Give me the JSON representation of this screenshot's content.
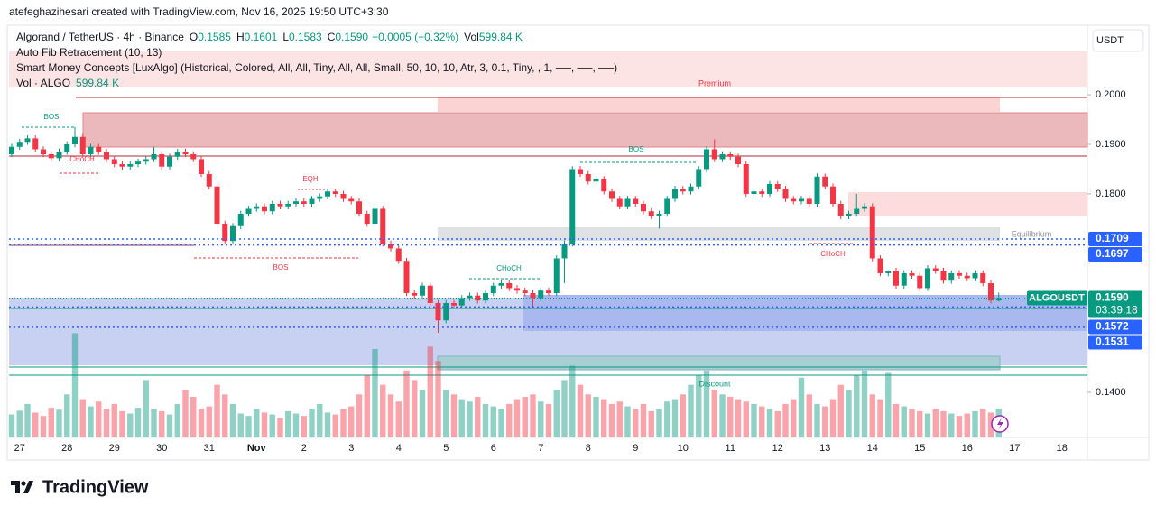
{
  "header": {
    "author_line": "atefeghazihesari created with TradingView.com, Nov 16, 2025 19:50 UTC+3:30"
  },
  "chart_data": {
    "type": "candlestick",
    "legend": {
      "symbol": "Algorand / TetherUS · 4h · Binance",
      "ohlc": [
        {
          "key": "O",
          "value": "0.1585"
        },
        {
          "key": "H",
          "value": "0.1601"
        },
        {
          "key": "L",
          "value": "0.1583"
        },
        {
          "key": "C",
          "value": "0.1590"
        }
      ],
      "change": "+0.0005 (+0.32%)",
      "volume_key": "Vol",
      "volume_value": "599.84 K",
      "indicators": [
        "Auto Fib Retracement (10, 13)",
        "Smart Money Concepts [LuxAlgo] (Historical, Colored, All, All, Tiny, All, All, Small, 50, 10, 10, Atr, 3, 0.1, Tiny, , 1, ──, ──, ──)"
      ],
      "volume_indicator": "Vol · ALGO",
      "volume_indicator_value": "599.84 K"
    },
    "currency": "USDT",
    "up_color": "#089981",
    "down_color": "#f23645",
    "open": [
      0.188,
      0.1895,
      0.1905,
      0.1912,
      0.189,
      0.188,
      0.1872,
      0.1885,
      0.19,
      0.1915,
      0.188,
      0.1895,
      0.1885,
      0.187,
      0.186,
      0.1855,
      0.186,
      0.1865,
      0.187,
      0.188,
      0.1855,
      0.1875,
      0.1885,
      0.188,
      0.187,
      0.184,
      0.1815,
      0.174,
      0.1705,
      0.1735,
      0.176,
      0.177,
      0.1775,
      0.1765,
      0.178,
      0.1775,
      0.178,
      0.1785,
      0.178,
      0.179,
      0.1795,
      0.1805,
      0.18,
      0.179,
      0.1785,
      0.176,
      0.174,
      0.177,
      0.17,
      0.169,
      0.1665,
      0.16,
      0.1595,
      0.1615,
      0.158,
      0.1545,
      0.158,
      0.1575,
      0.159,
      0.1595,
      0.1585,
      0.16,
      0.1615,
      0.162,
      0.161,
      0.1605,
      0.16,
      0.159,
      0.1605,
      0.16,
      0.167,
      0.17,
      0.185,
      0.184,
      0.1825,
      0.183,
      0.1805,
      0.179,
      0.1775,
      0.179,
      0.178,
      0.1765,
      0.1755,
      0.176,
      0.179,
      0.181,
      0.1805,
      0.1815,
      0.185,
      0.189,
      0.187,
      0.188,
      0.1875,
      0.186,
      0.18,
      0.1805,
      0.18,
      0.182,
      0.181,
      0.179,
      0.1785,
      0.179,
      0.178,
      0.1835,
      0.1815,
      0.178,
      0.1755,
      0.176,
      0.177,
      0.1775,
      0.167,
      0.164,
      0.1645,
      0.1615,
      0.164,
      0.1635,
      0.161,
      0.165,
      0.1645,
      0.1625,
      0.164,
      0.1635,
      0.163,
      0.164,
      0.162,
      0.1585
    ],
    "high": [
      0.1901,
      0.1911,
      0.1918,
      0.1918,
      0.1896,
      0.1886,
      0.1891,
      0.1906,
      0.1935,
      0.1921,
      0.1901,
      0.1901,
      0.1891,
      0.1876,
      0.1866,
      0.1866,
      0.1871,
      0.1876,
      0.1895,
      0.1886,
      0.1881,
      0.1891,
      0.1891,
      0.1886,
      0.1876,
      0.1846,
      0.1821,
      0.1746,
      0.1741,
      0.1766,
      0.1776,
      0.1781,
      0.1781,
      0.1786,
      0.1786,
      0.1786,
      0.1791,
      0.1791,
      0.1796,
      0.1801,
      0.1811,
      0.1811,
      0.1806,
      0.1796,
      0.1791,
      0.1766,
      0.1776,
      0.1776,
      0.1706,
      0.1696,
      0.1671,
      0.1606,
      0.1621,
      0.1621,
      0.1586,
      0.1586,
      0.1586,
      0.1596,
      0.1601,
      0.1601,
      0.1606,
      0.1621,
      0.1626,
      0.1626,
      0.1616,
      0.1611,
      0.1606,
      0.1611,
      0.1611,
      0.1676,
      0.1706,
      0.1856,
      0.1856,
      0.1846,
      0.1836,
      0.1836,
      0.1811,
      0.1796,
      0.1796,
      0.1796,
      0.1786,
      0.1771,
      0.1766,
      0.1796,
      0.1816,
      0.1816,
      0.1821,
      0.1856,
      0.1896,
      0.191,
      0.1886,
      0.1886,
      0.1881,
      0.1866,
      0.1811,
      0.1811,
      0.1826,
      0.1826,
      0.1816,
      0.1796,
      0.1796,
      0.1796,
      0.1841,
      0.1841,
      0.1821,
      0.1786,
      0.1766,
      0.18,
      0.1781,
      0.1781,
      0.1676,
      0.1646,
      0.1651,
      0.1646,
      0.1646,
      0.1641,
      0.1656,
      0.1656,
      0.1651,
      0.1646,
      0.1646,
      0.1641,
      0.1646,
      0.1646,
      0.1626,
      0.1601
    ],
    "low": [
      0.1874,
      0.1889,
      0.1899,
      0.1884,
      0.1874,
      0.1866,
      0.1866,
      0.1879,
      0.1894,
      0.1874,
      0.1874,
      0.1879,
      0.1864,
      0.1854,
      0.1849,
      0.1849,
      0.1854,
      0.1859,
      0.1864,
      0.1849,
      0.1849,
      0.1869,
      0.1874,
      0.1864,
      0.1834,
      0.1809,
      0.1734,
      0.1699,
      0.1699,
      0.1729,
      0.1754,
      0.1764,
      0.1759,
      0.1759,
      0.1769,
      0.1769,
      0.1774,
      0.1774,
      0.1774,
      0.1784,
      0.1789,
      0.1794,
      0.1784,
      0.1779,
      0.1754,
      0.1734,
      0.1734,
      0.1694,
      0.1684,
      0.1659,
      0.1594,
      0.1589,
      0.1589,
      0.1574,
      0.152,
      0.1539,
      0.1569,
      0.1569,
      0.1584,
      0.1579,
      0.1579,
      0.1594,
      0.1609,
      0.1604,
      0.1599,
      0.1594,
      0.157,
      0.1584,
      0.1594,
      0.1594,
      0.162,
      0.1694,
      0.1834,
      0.1819,
      0.1819,
      0.1799,
      0.1784,
      0.1769,
      0.1769,
      0.1774,
      0.1759,
      0.1749,
      0.173,
      0.1754,
      0.1784,
      0.1799,
      0.1799,
      0.1809,
      0.1844,
      0.1864,
      0.1864,
      0.1869,
      0.1854,
      0.1794,
      0.1794,
      0.1794,
      0.1794,
      0.1804,
      0.1784,
      0.1779,
      0.1779,
      0.1774,
      0.1774,
      0.1809,
      0.1774,
      0.1749,
      0.1749,
      0.1754,
      0.1764,
      0.1664,
      0.1634,
      0.1634,
      0.1609,
      0.1609,
      0.1629,
      0.1604,
      0.1604,
      0.1639,
      0.1619,
      0.1619,
      0.1629,
      0.1624,
      0.1624,
      0.1614,
      0.1579,
      0.1583
    ],
    "close": [
      0.1895,
      0.1905,
      0.1912,
      0.189,
      0.188,
      0.1872,
      0.1885,
      0.19,
      0.1915,
      0.188,
      0.1895,
      0.1885,
      0.187,
      0.186,
      0.1855,
      0.186,
      0.1865,
      0.187,
      0.188,
      0.1855,
      0.1875,
      0.1885,
      0.188,
      0.187,
      0.184,
      0.1815,
      0.174,
      0.1705,
      0.1735,
      0.176,
      0.177,
      0.1775,
      0.1765,
      0.178,
      0.1775,
      0.178,
      0.1785,
      0.178,
      0.179,
      0.1795,
      0.1805,
      0.18,
      0.179,
      0.1785,
      0.176,
      0.174,
      0.177,
      0.17,
      0.169,
      0.1665,
      0.16,
      0.1595,
      0.1615,
      0.158,
      0.1545,
      0.158,
      0.1575,
      0.159,
      0.1595,
      0.1585,
      0.16,
      0.1615,
      0.162,
      0.161,
      0.1605,
      0.16,
      0.159,
      0.1605,
      0.16,
      0.167,
      0.17,
      0.185,
      0.184,
      0.1825,
      0.183,
      0.1805,
      0.179,
      0.1775,
      0.179,
      0.178,
      0.1765,
      0.1755,
      0.176,
      0.179,
      0.181,
      0.1805,
      0.1815,
      0.185,
      0.189,
      0.187,
      0.188,
      0.1875,
      0.186,
      0.18,
      0.1805,
      0.18,
      0.182,
      0.181,
      0.179,
      0.1785,
      0.179,
      0.178,
      0.1835,
      0.1815,
      0.178,
      0.1755,
      0.176,
      0.177,
      0.1775,
      0.167,
      0.164,
      0.1645,
      0.1615,
      0.164,
      0.1635,
      0.161,
      0.165,
      0.1645,
      0.1625,
      0.164,
      0.1635,
      0.163,
      0.164,
      0.162,
      0.1585,
      0.159
    ],
    "volume": [
      480,
      560,
      700,
      520,
      450,
      620,
      580,
      900,
      2180,
      800,
      650,
      750,
      600,
      700,
      550,
      500,
      620,
      1200,
      600,
      550,
      480,
      700,
      1000,
      850,
      600,
      650,
      1100,
      900,
      700,
      500,
      450,
      600,
      520,
      480,
      400,
      550,
      500,
      450,
      600,
      700,
      520,
      480,
      600,
      650,
      900,
      1300,
      1850,
      1100,
      900,
      750,
      1400,
      1200,
      1000,
      1900,
      1600,
      1000,
      900,
      800,
      750,
      850,
      700,
      650,
      600,
      700,
      800,
      850,
      900,
      750,
      700,
      1000,
      1200,
      1500,
      1100,
      900,
      850,
      800,
      700,
      750,
      650,
      600,
      700,
      550,
      600,
      750,
      800,
      900,
      1100,
      1300,
      1400,
      1000,
      900,
      850,
      800,
      750,
      700,
      650,
      600,
      550,
      700,
      800,
      1250,
      900,
      700,
      650,
      800,
      1100,
      1000,
      1300,
      1400,
      900,
      800,
      1350,
      700,
      650,
      600,
      550,
      500,
      600,
      550,
      500,
      450,
      500,
      550,
      600,
      520,
      599.84
    ],
    "ylim": [
      0.1309,
      0.214
    ],
    "yticks": [
      {
        "value": 0.2,
        "label": "0.2000"
      },
      {
        "value": 0.19,
        "label": "0.1900"
      },
      {
        "value": 0.18,
        "label": "0.1800"
      },
      {
        "value": 0.14,
        "label": "0.1400"
      }
    ],
    "xticks": [
      "27",
      "28",
      "29",
      "30",
      "31",
      "Nov",
      "2",
      "3",
      "4",
      "5",
      "6",
      "7",
      "8",
      "9",
      "10",
      "11",
      "12",
      "13",
      "14",
      "15",
      "16",
      "17",
      "18"
    ],
    "price_labels": [
      {
        "value": 0.1709,
        "label": "0.1709",
        "color": "#2962ff"
      },
      {
        "value": 0.1697,
        "label": "0.1697",
        "color": "#2962ff"
      },
      {
        "value": 0.1572,
        "label": "0.1572",
        "color": "#2962ff"
      },
      {
        "value": 0.1531,
        "label": "0.1531",
        "color": "#2962ff"
      }
    ],
    "symbol_badge": {
      "name": "ALGOUSDT",
      "value": 0.159,
      "price": "0.1590",
      "countdown": "03:39:18"
    },
    "annotations": [
      "Premium",
      "Equilibrium",
      "Discount",
      "BOS",
      "CHoCH",
      "EQH",
      "BOS",
      "CHoCH",
      "BOS",
      "CHoCH"
    ]
  },
  "footer": {
    "brand": "TradingView"
  }
}
